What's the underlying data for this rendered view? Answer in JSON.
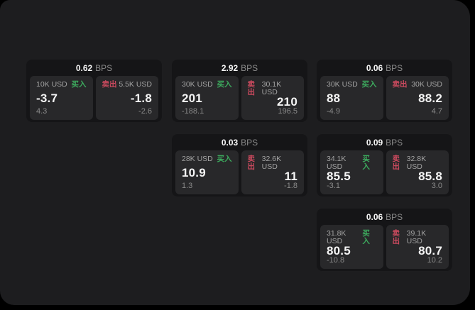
{
  "colors": {
    "backdrop": "#000000",
    "panel_background": "#1d1d1f",
    "card_background": "#151517",
    "tile_background": "#28282a",
    "buy_green": "#3dab5e",
    "sell_red": "#cb4a5e",
    "value_white": "#f5f5f5",
    "label_gray": "#a3a3a3",
    "dim_gray": "#8a8a8a"
  },
  "cards": [
    {
      "bps_value": "0.62",
      "bps_unit": "BPS",
      "buy": {
        "amount": "10K USD",
        "side_label": "买入",
        "price": "-3.7",
        "delta": "4.3"
      },
      "sell": {
        "side_label": "卖出",
        "amount": "5.5K USD",
        "price": "-1.8",
        "delta": "-2.6"
      }
    },
    {
      "bps_value": "2.92",
      "bps_unit": "BPS",
      "buy": {
        "amount": "30K USD",
        "side_label": "买入",
        "price": "201",
        "delta": "-188.1"
      },
      "sell": {
        "side_label": "卖出",
        "amount": "30.1K USD",
        "price": "210",
        "delta": "196.5"
      }
    },
    {
      "bps_value": "0.06",
      "bps_unit": "BPS",
      "buy": {
        "amount": "30K USD",
        "side_label": "买入",
        "price": "88",
        "delta": "-4.9"
      },
      "sell": {
        "side_label": "卖出",
        "amount": "30K USD",
        "price": "88.2",
        "delta": "4.7"
      }
    },
    {
      "bps_value": "0.03",
      "bps_unit": "BPS",
      "buy": {
        "amount": "28K USD",
        "side_label": "买入",
        "price": "10.9",
        "delta": "1.3"
      },
      "sell": {
        "side_label": "卖出",
        "amount": "32.6K USD",
        "price": "11",
        "delta": "-1.8"
      }
    },
    {
      "bps_value": "0.09",
      "bps_unit": "BPS",
      "buy": {
        "amount": "34.1K USD",
        "side_label": "买入",
        "price": "85.5",
        "delta": "-3.1"
      },
      "sell": {
        "side_label": "卖出",
        "amount": "32.8K USD",
        "price": "85.8",
        "delta": "3.0"
      }
    },
    {
      "bps_value": "0.06",
      "bps_unit": "BPS",
      "buy": {
        "amount": "31.8K USD",
        "side_label": "买入",
        "price": "80.5",
        "delta": "-10.8"
      },
      "sell": {
        "side_label": "卖出",
        "amount": "39.1K USD",
        "price": "80.7",
        "delta": "10.2"
      }
    }
  ]
}
